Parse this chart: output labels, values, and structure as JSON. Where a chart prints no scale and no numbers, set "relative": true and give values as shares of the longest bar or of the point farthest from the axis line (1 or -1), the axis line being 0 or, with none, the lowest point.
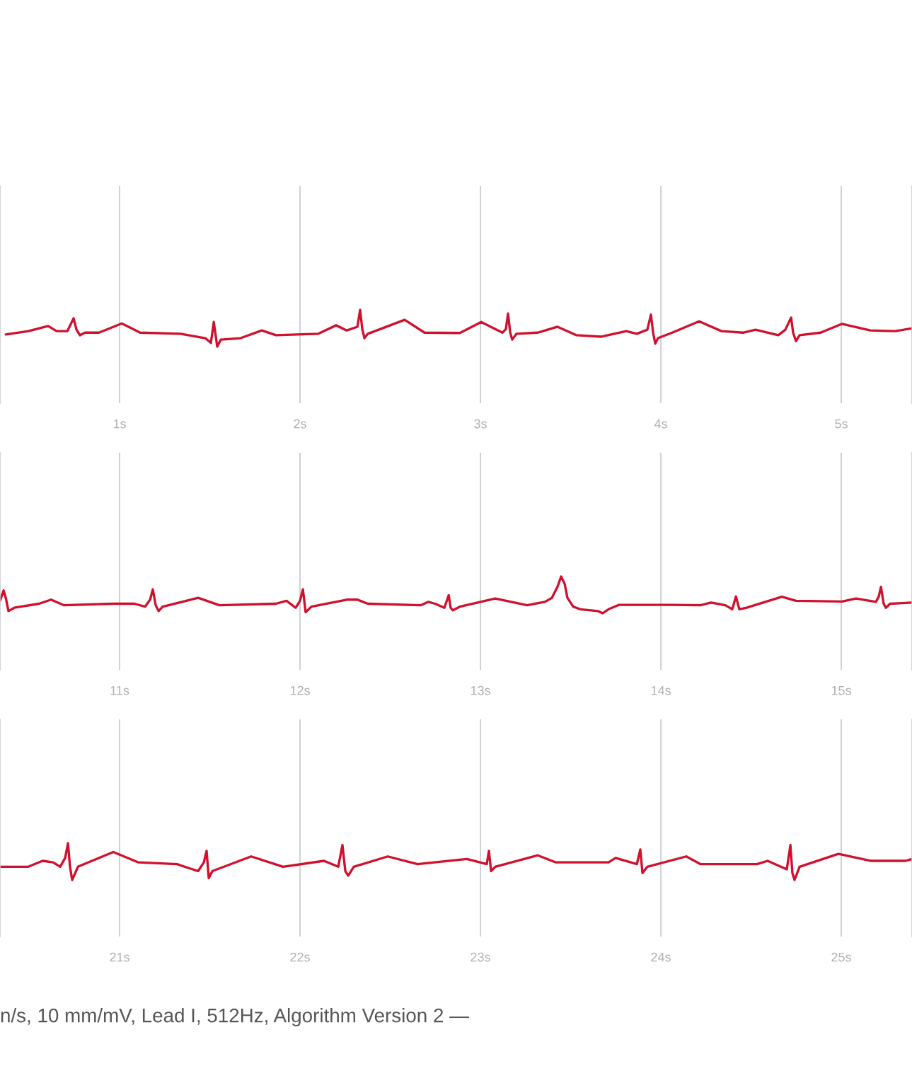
{
  "chart_data": [
    {
      "type": "line",
      "relative": true,
      "color": "#d0102c",
      "grid": "x",
      "xlim": [
        0.337,
        5.392
      ],
      "xticks": [
        {
          "value": 1,
          "label": "1s"
        },
        {
          "value": 2,
          "label": "2s"
        },
        {
          "value": 3,
          "label": "3s"
        },
        {
          "value": 4,
          "label": "4s"
        },
        {
          "value": 5,
          "label": "5s"
        }
      ],
      "x": [
        0.369,
        0.494,
        0.604,
        0.651,
        0.71,
        0.745,
        0.761,
        0.78,
        0.808,
        0.886,
        1.012,
        1.114,
        1.337,
        1.475,
        1.506,
        1.522,
        1.541,
        1.561,
        1.671,
        1.788,
        1.867,
        2.102,
        2.2,
        2.259,
        2.318,
        2.333,
        2.345,
        2.357,
        2.376,
        2.58,
        2.69,
        2.886,
        3.004,
        3.122,
        3.141,
        3.153,
        3.165,
        3.176,
        3.2,
        3.318,
        3.427,
        3.533,
        3.671,
        3.808,
        3.867,
        3.925,
        3.945,
        3.957,
        3.969,
        3.984,
        4.063,
        4.212,
        4.337,
        4.455,
        4.525,
        4.651,
        4.69,
        4.722,
        4.733,
        4.749,
        4.769,
        4.886,
        5.004,
        5.161,
        5.298,
        5.392
      ],
      "values": [
        0.33,
        0.42,
        0.56,
        0.42,
        0.42,
        0.77,
        0.46,
        0.31,
        0.38,
        0.38,
        0.63,
        0.38,
        0.35,
        0.23,
        0.1,
        0.67,
        0.0,
        0.19,
        0.23,
        0.44,
        0.31,
        0.35,
        0.58,
        0.44,
        0.54,
        1.0,
        0.48,
        0.23,
        0.35,
        0.73,
        0.38,
        0.37,
        0.67,
        0.38,
        0.48,
        0.9,
        0.38,
        0.19,
        0.35,
        0.38,
        0.54,
        0.31,
        0.27,
        0.42,
        0.35,
        0.46,
        0.87,
        0.38,
        0.08,
        0.23,
        0.38,
        0.69,
        0.42,
        0.38,
        0.46,
        0.31,
        0.46,
        0.79,
        0.38,
        0.15,
        0.31,
        0.38,
        0.62,
        0.44,
        0.42,
        0.5
      ]
    },
    {
      "type": "line",
      "relative": true,
      "color": "#d0102c",
      "grid": "x",
      "xlim": [
        10.337,
        15.392
      ],
      "xticks": [
        {
          "value": 11,
          "label": "11s"
        },
        {
          "value": 12,
          "label": "12s"
        },
        {
          "value": 13,
          "label": "13s"
        },
        {
          "value": 14,
          "label": "14s"
        },
        {
          "value": 15,
          "label": "15s"
        }
      ],
      "x": [
        10.337,
        10.357,
        10.369,
        10.384,
        10.416,
        10.553,
        10.62,
        10.69,
        10.965,
        11.082,
        11.141,
        11.169,
        11.184,
        11.2,
        11.216,
        11.239,
        11.435,
        11.553,
        11.867,
        11.925,
        11.976,
        12.0,
        12.016,
        12.031,
        12.063,
        12.259,
        12.318,
        12.376,
        12.671,
        12.71,
        12.749,
        12.8,
        12.824,
        12.835,
        12.847,
        12.886,
        13.082,
        13.259,
        13.357,
        13.396,
        13.427,
        13.447,
        13.467,
        13.482,
        13.514,
        13.553,
        13.651,
        13.678,
        13.71,
        13.769,
        14.063,
        14.22,
        14.278,
        14.357,
        14.396,
        14.416,
        14.435,
        14.475,
        14.671,
        14.749,
        15.004,
        15.082,
        15.192,
        15.208,
        15.22,
        15.235,
        15.247,
        15.271,
        15.392
      ],
      "values": [
        0.34,
        0.62,
        0.42,
        0.06,
        0.15,
        0.26,
        0.37,
        0.22,
        0.26,
        0.26,
        0.18,
        0.37,
        0.65,
        0.22,
        0.06,
        0.18,
        0.42,
        0.22,
        0.26,
        0.34,
        0.15,
        0.34,
        0.65,
        0.03,
        0.18,
        0.37,
        0.37,
        0.26,
        0.22,
        0.31,
        0.26,
        0.15,
        0.49,
        0.15,
        0.08,
        0.18,
        0.4,
        0.22,
        0.31,
        0.42,
        0.72,
        1.0,
        0.8,
        0.42,
        0.18,
        0.11,
        0.06,
        0.0,
        0.11,
        0.23,
        0.23,
        0.22,
        0.29,
        0.22,
        0.11,
        0.46,
        0.11,
        0.15,
        0.45,
        0.34,
        0.32,
        0.4,
        0.31,
        0.46,
        0.72,
        0.26,
        0.15,
        0.26,
        0.29
      ]
    },
    {
      "type": "line",
      "relative": true,
      "color": "#d0102c",
      "grid": "x",
      "xlim": [
        20.337,
        25.392
      ],
      "xticks": [
        {
          "value": 21,
          "label": "21s"
        },
        {
          "value": 22,
          "label": "22s"
        },
        {
          "value": 23,
          "label": "23s"
        },
        {
          "value": 24,
          "label": "24s"
        },
        {
          "value": 25,
          "label": "25s"
        }
      ],
      "x": [
        20.337,
        20.494,
        20.573,
        20.631,
        20.671,
        20.698,
        20.714,
        20.725,
        20.737,
        20.769,
        20.965,
        21.102,
        21.318,
        21.435,
        21.467,
        21.482,
        21.494,
        21.514,
        21.729,
        21.906,
        22.133,
        22.212,
        22.235,
        22.251,
        22.267,
        22.298,
        22.486,
        22.651,
        22.925,
        23.035,
        23.047,
        23.059,
        23.082,
        23.318,
        23.416,
        23.71,
        23.749,
        23.867,
        23.886,
        23.898,
        23.925,
        24.141,
        24.22,
        24.533,
        24.592,
        24.698,
        24.718,
        24.729,
        24.741,
        24.769,
        24.984,
        25.161,
        25.357,
        25.392
      ],
      "values": [
        0.36,
        0.36,
        0.52,
        0.48,
        0.36,
        0.6,
        1.0,
        0.36,
        0.0,
        0.36,
        0.76,
        0.48,
        0.43,
        0.24,
        0.48,
        0.79,
        0.05,
        0.24,
        0.64,
        0.36,
        0.52,
        0.36,
        0.95,
        0.24,
        0.12,
        0.36,
        0.64,
        0.43,
        0.57,
        0.43,
        0.79,
        0.24,
        0.36,
        0.67,
        0.48,
        0.48,
        0.6,
        0.43,
        0.83,
        0.19,
        0.36,
        0.64,
        0.43,
        0.43,
        0.52,
        0.29,
        0.95,
        0.19,
        0.0,
        0.36,
        0.71,
        0.52,
        0.52,
        0.57
      ],
      "annotations": [
        "n/s, 10 mm/mV, Lead I, 512Hz, Algorithm Version 2 —"
      ]
    }
  ]
}
